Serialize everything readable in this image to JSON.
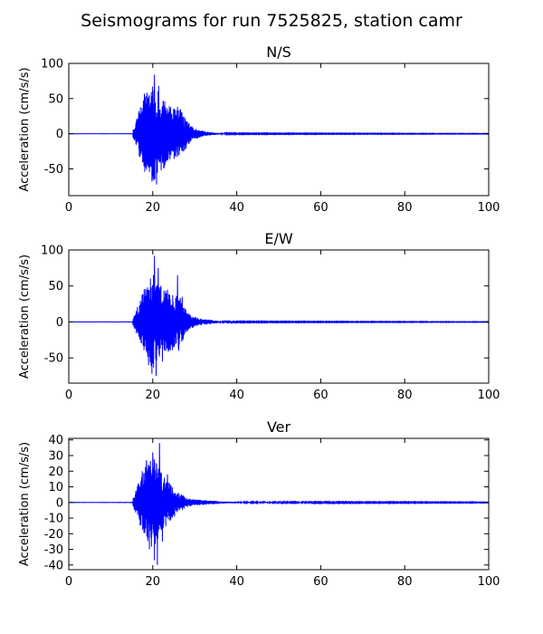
{
  "figure": {
    "title": "Seismograms for run 7525825, station camr"
  },
  "chart_data": [
    {
      "type": "line",
      "title": "N/S",
      "xlabel": "",
      "ylabel": "Acceleration (cm/s/s)",
      "xlim": [
        0,
        100
      ],
      "ylim": [
        -88,
        100
      ],
      "xticks": [
        0,
        20,
        40,
        60,
        80,
        100
      ],
      "yticks": [
        -50,
        0,
        50,
        100
      ],
      "line_color": "#0000ff",
      "grid": false,
      "envelope": {
        "onset": 15.3,
        "points": [
          [
            0,
            0.4
          ],
          [
            15,
            0.6
          ],
          [
            16,
            18
          ],
          [
            17,
            40
          ],
          [
            18,
            55
          ],
          [
            19,
            62
          ],
          [
            20,
            70
          ],
          [
            21,
            62
          ],
          [
            22,
            55
          ],
          [
            23,
            48
          ],
          [
            24,
            40
          ],
          [
            25,
            36
          ],
          [
            26,
            35
          ],
          [
            27,
            30
          ],
          [
            28,
            20
          ],
          [
            29,
            12
          ],
          [
            30,
            8
          ],
          [
            32,
            4
          ],
          [
            34,
            2
          ],
          [
            36,
            1
          ],
          [
            40,
            0.6
          ],
          [
            100,
            0.3
          ]
        ],
        "peaks": [
          [
            16.5,
            20
          ],
          [
            17.5,
            -30
          ],
          [
            18.0,
            57
          ],
          [
            19.0,
            -48
          ],
          [
            19.8,
            -68
          ],
          [
            20.4,
            84
          ],
          [
            20.9,
            -72
          ],
          [
            21.4,
            68
          ],
          [
            22.0,
            -52
          ],
          [
            22.5,
            44
          ],
          [
            23.6,
            -38
          ],
          [
            25.9,
            38
          ],
          [
            26.6,
            35
          ],
          [
            26.3,
            -30
          ]
        ],
        "seed": 11
      }
    },
    {
      "type": "line",
      "title": "E/W",
      "xlabel": "",
      "ylabel": "Acceleration (cm/s/s)",
      "xlim": [
        0,
        100
      ],
      "ylim": [
        -85,
        100
      ],
      "xticks": [
        0,
        20,
        40,
        60,
        80,
        100
      ],
      "yticks": [
        -50,
        0,
        50,
        100
      ],
      "line_color": "#0000ff",
      "grid": false,
      "envelope": {
        "onset": 15.3,
        "points": [
          [
            0,
            0.4
          ],
          [
            15,
            0.6
          ],
          [
            16,
            15
          ],
          [
            17,
            35
          ],
          [
            18,
            48
          ],
          [
            19,
            58
          ],
          [
            20,
            70
          ],
          [
            21,
            60
          ],
          [
            22,
            50
          ],
          [
            23,
            45
          ],
          [
            24,
            40
          ],
          [
            25,
            42
          ],
          [
            26,
            40
          ],
          [
            27,
            28
          ],
          [
            28,
            16
          ],
          [
            29,
            10
          ],
          [
            30,
            7
          ],
          [
            32,
            4
          ],
          [
            34,
            3
          ],
          [
            36,
            1
          ],
          [
            40,
            0.6
          ],
          [
            100,
            0.3
          ]
        ],
        "peaks": [
          [
            17.5,
            28
          ],
          [
            18.3,
            46
          ],
          [
            19.0,
            -60
          ],
          [
            19.8,
            -72
          ],
          [
            20.4,
            92
          ],
          [
            20.8,
            -75
          ],
          [
            21.3,
            75
          ],
          [
            22.3,
            -55
          ],
          [
            23.5,
            45
          ],
          [
            25.9,
            65
          ],
          [
            26.2,
            -40
          ],
          [
            27.0,
            35
          ]
        ],
        "seed": 23
      }
    },
    {
      "type": "line",
      "title": "Ver",
      "xlabel": "",
      "ylabel": "Acceleration (cm/s/s)",
      "xlim": [
        0,
        100
      ],
      "ylim": [
        -43,
        41
      ],
      "xticks": [
        0,
        20,
        40,
        60,
        80,
        100
      ],
      "yticks": [
        -40,
        -30,
        -20,
        -10,
        0,
        10,
        20,
        30,
        40
      ],
      "line_color": "#0000ff",
      "grid": false,
      "envelope": {
        "onset": 15.3,
        "points": [
          [
            0,
            0.3
          ],
          [
            15,
            0.5
          ],
          [
            16,
            8
          ],
          [
            17,
            15
          ],
          [
            18,
            22
          ],
          [
            19,
            26
          ],
          [
            20,
            30
          ],
          [
            21,
            25
          ],
          [
            22,
            20
          ],
          [
            23,
            16
          ],
          [
            24,
            13
          ],
          [
            25,
            10
          ],
          [
            26,
            7
          ],
          [
            27,
            5
          ],
          [
            28,
            3
          ],
          [
            30,
            2
          ],
          [
            32,
            1.5
          ],
          [
            34,
            1.2
          ],
          [
            36,
            0.8
          ],
          [
            40,
            0.4
          ],
          [
            100,
            0.2
          ]
        ],
        "peaks": [
          [
            16.5,
            12
          ],
          [
            17.5,
            20
          ],
          [
            18.5,
            27
          ],
          [
            19.2,
            -30
          ],
          [
            20.0,
            32
          ],
          [
            20.4,
            -37
          ],
          [
            20.9,
            25
          ],
          [
            21.1,
            -40
          ],
          [
            21.6,
            38
          ],
          [
            22.3,
            -25
          ],
          [
            23.5,
            18
          ]
        ],
        "seed": 37
      }
    }
  ]
}
